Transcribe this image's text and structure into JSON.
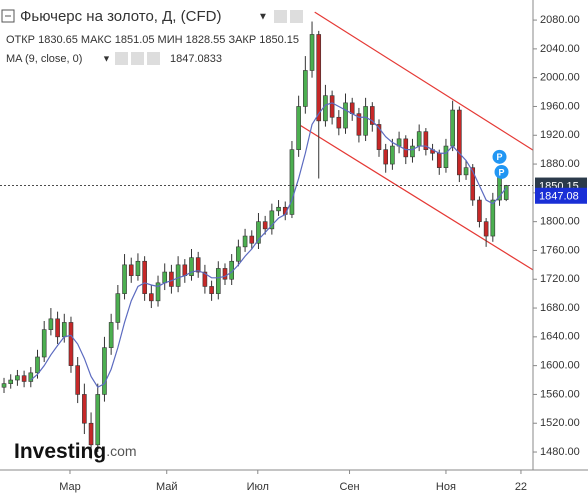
{
  "chart_data": {
    "type": "candlestick",
    "title": "Фьючерс на золото, Д, (CFD)",
    "ohlc_header": {
      "open_label": "ОТКР",
      "open": 1830.65,
      "high_label": "МАКС",
      "high": 1851.05,
      "low_label": "МИН",
      "low": 1828.55,
      "close_label": "ЗАКР",
      "close": 1850.15
    },
    "up_color": "#4caf50",
    "down_color": "#c62828",
    "open": [
      1570,
      1575,
      1580,
      1586,
      1578,
      1590,
      1612,
      1650,
      1665,
      1640,
      1660,
      1600,
      1560,
      1520,
      1490,
      1560,
      1625,
      1660,
      1700,
      1740,
      1725,
      1745,
      1700,
      1690,
      1715,
      1730,
      1710,
      1740,
      1725,
      1750,
      1730,
      1710,
      1700,
      1735,
      1720,
      1745,
      1765,
      1780,
      1770,
      1800,
      1790,
      1815,
      1820,
      1810,
      1900,
      1960,
      2010,
      2060,
      1940,
      1975,
      1945,
      1930,
      1965,
      1950,
      1920,
      1960,
      1935,
      1900,
      1880,
      1905,
      1915,
      1890,
      1905,
      1925,
      1900,
      1895,
      1875,
      1905,
      1955,
      1865,
      1875,
      1830,
      1800,
      1780,
      1830,
      1830.65
    ],
    "high": [
      1583,
      1588,
      1594,
      1593,
      1598,
      1622,
      1662,
      1680,
      1675,
      1672,
      1668,
      1612,
      1575,
      1535,
      1575,
      1640,
      1672,
      1712,
      1755,
      1750,
      1756,
      1752,
      1712,
      1725,
      1742,
      1740,
      1752,
      1748,
      1762,
      1758,
      1740,
      1718,
      1745,
      1742,
      1755,
      1775,
      1790,
      1788,
      1812,
      1808,
      1825,
      1830,
      1828,
      1912,
      1975,
      2030,
      2078,
      2065,
      1990,
      1982,
      1955,
      1978,
      1972,
      1958,
      1972,
      1966,
      1942,
      1908,
      1915,
      1925,
      1920,
      1915,
      1935,
      1930,
      1908,
      1900,
      1915,
      1968,
      1960,
      1885,
      1880,
      1835,
      1805,
      1840,
      1878,
      1851.05
    ],
    "low": [
      1562,
      1568,
      1572,
      1570,
      1570,
      1582,
      1605,
      1642,
      1630,
      1632,
      1590,
      1548,
      1505,
      1470,
      1480,
      1550,
      1615,
      1650,
      1692,
      1715,
      1718,
      1690,
      1680,
      1682,
      1705,
      1700,
      1702,
      1715,
      1718,
      1722,
      1700,
      1690,
      1692,
      1712,
      1712,
      1738,
      1758,
      1762,
      1762,
      1782,
      1782,
      1808,
      1802,
      1805,
      1890,
      1950,
      2000,
      1860,
      1932,
      1935,
      1920,
      1922,
      1940,
      1910,
      1912,
      1925,
      1890,
      1868,
      1872,
      1895,
      1880,
      1882,
      1898,
      1892,
      1885,
      1865,
      1868,
      1898,
      1855,
      1858,
      1822,
      1792,
      1765,
      1772,
      1822,
      1828.55
    ],
    "close": [
      1575,
      1580,
      1586,
      1578,
      1590,
      1612,
      1650,
      1665,
      1640,
      1660,
      1600,
      1560,
      1520,
      1490,
      1560,
      1625,
      1660,
      1700,
      1740,
      1725,
      1745,
      1700,
      1690,
      1715,
      1730,
      1710,
      1740,
      1725,
      1750,
      1730,
      1710,
      1700,
      1735,
      1720,
      1745,
      1765,
      1780,
      1770,
      1800,
      1790,
      1815,
      1820,
      1810,
      1900,
      1960,
      2010,
      2060,
      1940,
      1975,
      1945,
      1930,
      1965,
      1950,
      1920,
      1960,
      1935,
      1900,
      1880,
      1905,
      1915,
      1890,
      1905,
      1925,
      1900,
      1895,
      1875,
      1905,
      1955,
      1865,
      1875,
      1830,
      1800,
      1780,
      1830,
      1868,
      1850.15
    ],
    "ma": {
      "name": "MA (9, close, 0)",
      "color": "#5c6bc0",
      "last_label": "1847.08",
      "values": [
        null,
        null,
        null,
        null,
        1580,
        1588,
        1600,
        1615,
        1628,
        1640,
        1642,
        1630,
        1610,
        1585,
        1570,
        1575,
        1595,
        1625,
        1660,
        1690,
        1710,
        1715,
        1712,
        1710,
        1715,
        1718,
        1722,
        1725,
        1730,
        1732,
        1728,
        1722,
        1722,
        1724,
        1730,
        1740,
        1752,
        1762,
        1775,
        1785,
        1795,
        1805,
        1810,
        1830,
        1860,
        1895,
        1935,
        1950,
        1962,
        1965,
        1960,
        1955,
        1950,
        1945,
        1945,
        1940,
        1930,
        1918,
        1910,
        1905,
        1900,
        1900,
        1905,
        1905,
        1900,
        1895,
        1895,
        1905,
        1895,
        1885,
        1870,
        1850,
        1830,
        1825,
        1835,
        1847.0833
      ]
    },
    "trendlines": [
      {
        "x": [
          46.4,
          79
        ],
        "y": [
          2091,
          1899.4
        ]
      },
      {
        "x": [
          44.2,
          79
        ],
        "y": [
          1934,
          1733
        ]
      }
    ],
    "trendline_color": "#e53935",
    "markers": [
      {
        "x": 74,
        "y": 1890,
        "label": "P"
      },
      {
        "x": 74.3,
        "y": 1869,
        "label": "P"
      }
    ],
    "xlim": [
      -0.6,
      79
    ],
    "xticks": [
      {
        "value": 9.85,
        "label": "Мар"
      },
      {
        "value": 24.3,
        "label": "Май"
      },
      {
        "value": 37.9,
        "label": "Июл"
      },
      {
        "value": 51.6,
        "label": "Сен"
      },
      {
        "value": 66,
        "label": "Ноя"
      },
      {
        "value": 77.2,
        "label": "22"
      }
    ],
    "ylim": [
      1456,
      2094
    ],
    "yticks": [
      {
        "value": 1480,
        "label": "1480.00"
      },
      {
        "value": 1520,
        "label": "1520.00"
      },
      {
        "value": 1560,
        "label": "1560.00"
      },
      {
        "value": 1600,
        "label": "1600.00"
      },
      {
        "value": 1640,
        "label": "1640.00"
      },
      {
        "value": 1680,
        "label": "1680.00"
      },
      {
        "value": 1720,
        "label": "1720.00"
      },
      {
        "value": 1760,
        "label": "1760.00"
      },
      {
        "value": 1800,
        "label": "1800.00"
      },
      {
        "value": 1840,
        "label": "1840.00"
      },
      {
        "value": 1880,
        "label": "1880.00"
      },
      {
        "value": 1920,
        "label": "1920.00"
      },
      {
        "value": 1960,
        "label": "1960.00"
      },
      {
        "value": 2000,
        "label": "2000.00"
      },
      {
        "value": 2040,
        "label": "2040.00"
      },
      {
        "value": 2080,
        "label": "2080.00"
      }
    ],
    "brand": {
      "name": "Investing",
      "suffix": ".com"
    }
  }
}
